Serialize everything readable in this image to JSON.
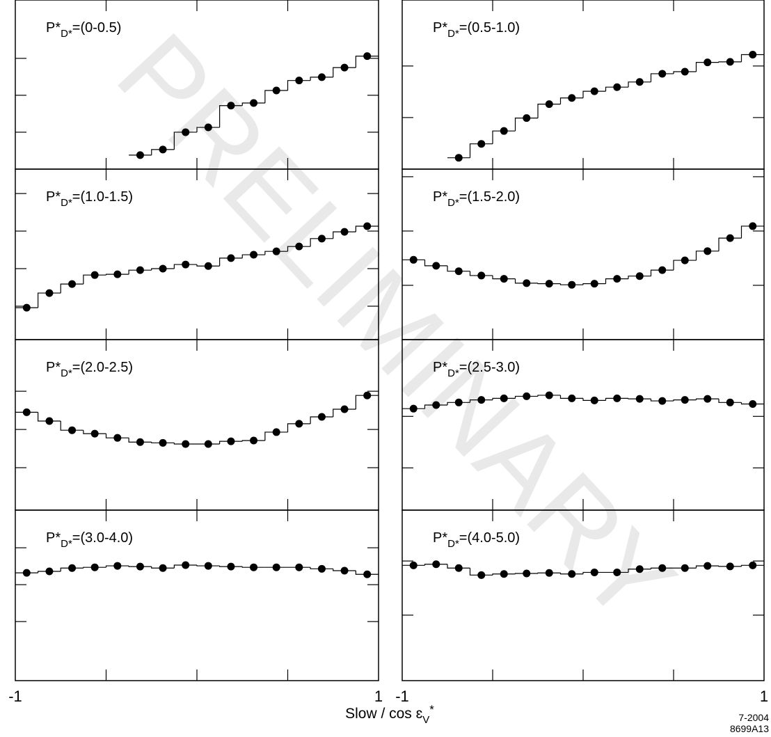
{
  "chart_data": [
    {
      "type": "scatter",
      "title": {
        "main": "P*",
        "sub": "D*",
        "range": "=(0-0.5)"
      },
      "xlim": [
        -1,
        1
      ],
      "xticks": [
        -1,
        -0.5,
        0,
        0.5,
        1
      ],
      "ylim": [
        0,
        4.58
      ],
      "yticks": [
        1,
        2,
        3
      ],
      "color": "#000000",
      "x": [
        -0.9375,
        -0.8125,
        -0.6875,
        -0.5625,
        -0.4375,
        -0.3125,
        -0.1875,
        -0.0625,
        0.0625,
        0.1875,
        0.3125,
        0.4375,
        0.5625,
        0.6875,
        0.8125,
        0.9375
      ],
      "values": [
        null,
        null,
        null,
        null,
        null,
        0.38,
        0.53,
        1.0,
        1.13,
        1.72,
        1.79,
        2.13,
        2.4,
        2.49,
        2.75,
        3.06
      ]
    },
    {
      "type": "scatter",
      "title": {
        "main": "P*",
        "sub": "D*",
        "range": "=(0.5-1.0)"
      },
      "xlim": [
        -1,
        1
      ],
      "xticks": [
        -1,
        -0.5,
        0,
        0.5,
        1
      ],
      "ylim": [
        0,
        3.28
      ],
      "yticks": [
        1,
        2
      ],
      "color": "#000000",
      "x": [
        -0.9375,
        -0.8125,
        -0.6875,
        -0.5625,
        -0.4375,
        -0.3125,
        -0.1875,
        -0.0625,
        0.0625,
        0.1875,
        0.3125,
        0.4375,
        0.5625,
        0.6875,
        0.8125,
        0.9375
      ],
      "values": [
        null,
        null,
        0.22,
        0.49,
        0.74,
        0.99,
        1.26,
        1.38,
        1.51,
        1.59,
        1.69,
        1.85,
        1.89,
        2.07,
        2.08,
        2.22
      ]
    },
    {
      "type": "scatter",
      "title": {
        "main": "P*",
        "sub": "D*",
        "range": "=(1.0-1.5)"
      },
      "xlim": [
        -1,
        1
      ],
      "xticks": [
        -1,
        -0.5,
        0,
        0.5,
        1
      ],
      "ylim": [
        0.11,
        4.65
      ],
      "yticks": [
        1,
        2,
        3,
        4
      ],
      "color": "#000000",
      "x": [
        -0.9375,
        -0.8125,
        -0.6875,
        -0.5625,
        -0.4375,
        -0.3125,
        -0.1875,
        -0.0625,
        0.0625,
        0.1875,
        0.3125,
        0.4375,
        0.5625,
        0.6875,
        0.8125,
        0.9375
      ],
      "values": [
        0.96,
        1.35,
        1.59,
        1.83,
        1.85,
        1.96,
        2.0,
        2.11,
        2.07,
        2.28,
        2.37,
        2.46,
        2.59,
        2.8,
        2.98,
        3.13
      ]
    },
    {
      "type": "scatter",
      "title": {
        "main": "P*",
        "sub": "D*",
        "range": "=(1.5-2.0)"
      },
      "xlim": [
        -1,
        1
      ],
      "xticks": [
        -1,
        -0.5,
        0,
        0.5,
        1
      ],
      "ylim": [
        0,
        3.14
      ],
      "yticks": [
        1,
        2,
        3
      ],
      "color": "#000000",
      "x": [
        -0.9375,
        -0.8125,
        -0.6875,
        -0.5625,
        -0.4375,
        -0.3125,
        -0.1875,
        -0.0625,
        0.0625,
        0.1875,
        0.3125,
        0.4375,
        0.5625,
        0.6875,
        0.8125,
        0.9375
      ],
      "values": [
        1.47,
        1.36,
        1.26,
        1.18,
        1.12,
        1.04,
        1.03,
        1.01,
        1.03,
        1.12,
        1.17,
        1.28,
        1.46,
        1.63,
        1.87,
        2.09
      ]
    },
    {
      "type": "scatter",
      "title": {
        "main": "P*",
        "sub": "D*",
        "range": "=(2.0-2.5)"
      },
      "xlim": [
        -1,
        1
      ],
      "xticks": [
        -1,
        -0.5,
        0,
        0.5,
        1
      ],
      "ylim": [
        -0.11,
        4.35
      ],
      "yticks": [
        1,
        2,
        3
      ],
      "color": "#000000",
      "x": [
        -0.9375,
        -0.8125,
        -0.6875,
        -0.5625,
        -0.4375,
        -0.3125,
        -0.1875,
        -0.0625,
        0.0625,
        0.1875,
        0.3125,
        0.4375,
        0.5625,
        0.6875,
        0.8125,
        0.9375
      ],
      "values": [
        2.45,
        2.22,
        1.98,
        1.89,
        1.78,
        1.67,
        1.65,
        1.62,
        1.62,
        1.69,
        1.71,
        1.93,
        2.15,
        2.33,
        2.53,
        2.89
      ]
    },
    {
      "type": "scatter",
      "title": {
        "main": "P*",
        "sub": "D*",
        "range": "=(2.5-3.0)"
      },
      "xlim": [
        -1,
        1
      ],
      "xticks": [
        -1,
        -0.5,
        0,
        0.5,
        1
      ],
      "ylim": [
        0.18,
        3.49
      ],
      "yticks": [
        1,
        2
      ],
      "color": "#000000",
      "x": [
        -0.9375,
        -0.8125,
        -0.6875,
        -0.5625,
        -0.4375,
        -0.3125,
        -0.1875,
        -0.0625,
        0.0625,
        0.1875,
        0.3125,
        0.4375,
        0.5625,
        0.6875,
        0.8125,
        0.9375
      ],
      "values": [
        2.15,
        2.22,
        2.27,
        2.32,
        2.35,
        2.39,
        2.41,
        2.35,
        2.31,
        2.35,
        2.34,
        2.3,
        2.32,
        2.34,
        2.27,
        2.24
      ]
    },
    {
      "type": "scatter",
      "title": {
        "main": "P*",
        "sub": "D*",
        "range": "=(3.0-4.0)"
      },
      "xlim": [
        -1,
        1
      ],
      "xticks": [
        -1,
        -0.5,
        0,
        0.5,
        1
      ],
      "ylim": [
        -0.6,
        4.02
      ],
      "yticks": [
        1,
        2,
        3
      ],
      "color": "#000000",
      "x": [
        -0.9375,
        -0.8125,
        -0.6875,
        -0.5625,
        -0.4375,
        -0.3125,
        -0.1875,
        -0.0625,
        0.0625,
        0.1875,
        0.3125,
        0.4375,
        0.5625,
        0.6875,
        0.8125,
        0.9375
      ],
      "values": [
        2.32,
        2.36,
        2.45,
        2.47,
        2.51,
        2.49,
        2.45,
        2.53,
        2.51,
        2.49,
        2.47,
        2.47,
        2.47,
        2.43,
        2.38,
        2.28
      ]
    },
    {
      "type": "scatter",
      "title": {
        "main": "P*",
        "sub": "D*",
        "range": "=(4.0-5.0)"
      },
      "xlim": [
        -1,
        1
      ],
      "xticks": [
        -1,
        -0.5,
        0,
        0.5,
        1
      ],
      "ylim": [
        -0.21,
        2.94
      ],
      "yticks": [
        1,
        2
      ],
      "color": "#000000",
      "x": [
        -0.9375,
        -0.8125,
        -0.6875,
        -0.5625,
        -0.4375,
        -0.3125,
        -0.1875,
        -0.0625,
        0.0625,
        0.1875,
        0.3125,
        0.4375,
        0.5625,
        0.6875,
        0.8125,
        0.9375
      ],
      "values": [
        1.92,
        1.94,
        1.87,
        1.74,
        1.76,
        1.77,
        1.78,
        1.76,
        1.79,
        1.79,
        1.85,
        1.87,
        1.87,
        1.91,
        1.9,
        1.92
      ]
    }
  ],
  "xlabel": {
    "main": "Slow  / cos ɛ",
    "sub": "V",
    "sup": "*"
  },
  "watermark": "PRELIMINARY",
  "footer": [
    "7-2004",
    "8699A13"
  ]
}
